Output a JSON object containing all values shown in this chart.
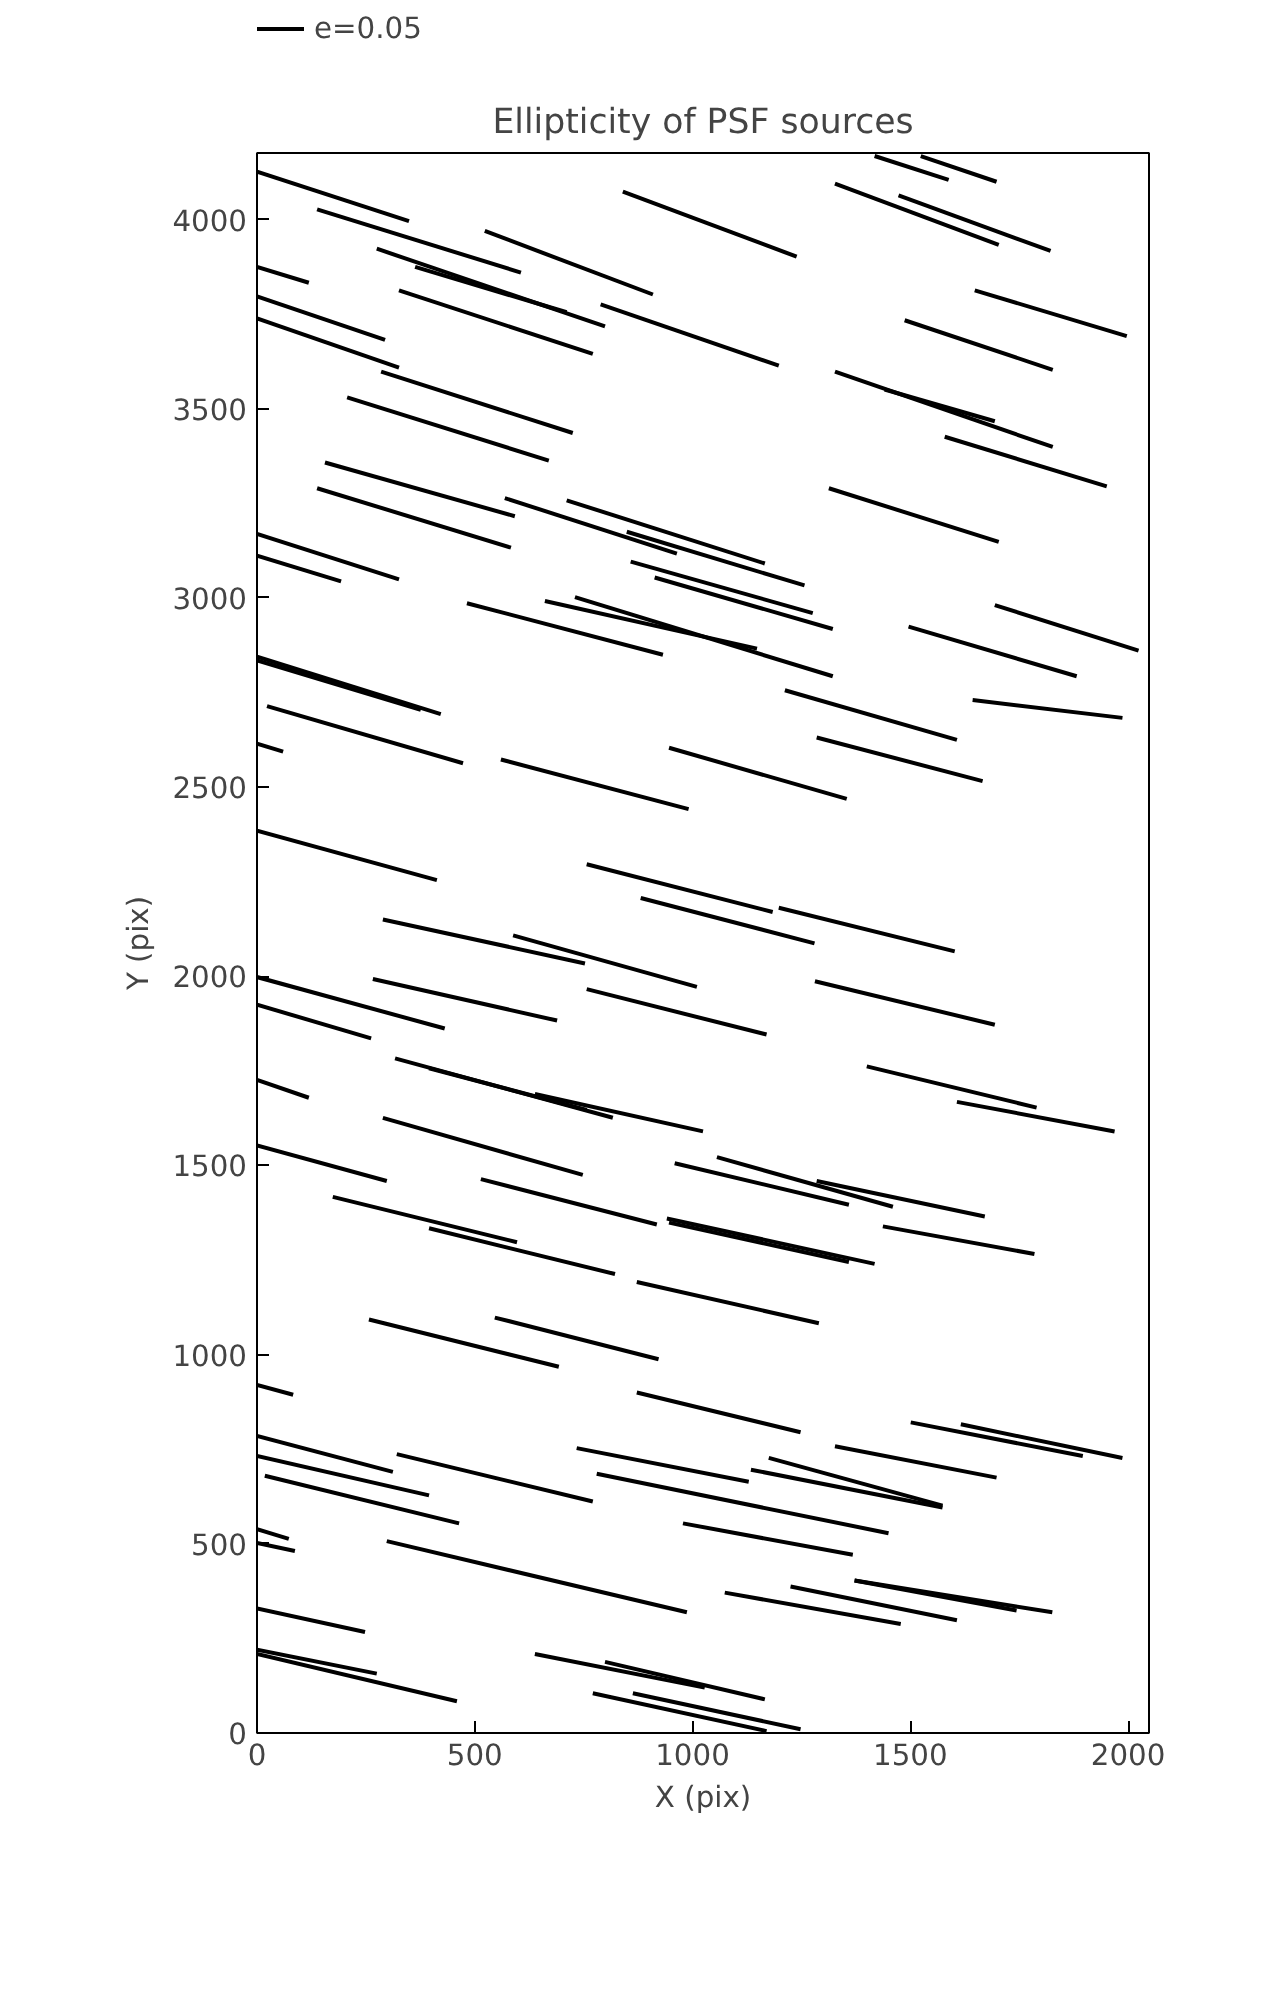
{
  "chart_data": {
    "type": "line",
    "title": "Ellipticity of PSF sources",
    "xlabel": "X (pix)",
    "ylabel": "Y (pix)",
    "xlim": [
      0,
      2048
    ],
    "ylim": [
      0,
      4176
    ],
    "xticks": [
      0,
      500,
      1000,
      1500,
      2000
    ],
    "yticks": [
      0,
      500,
      1000,
      1500,
      2000,
      2500,
      3000,
      3500,
      4000
    ],
    "grid": false,
    "legend": "top left",
    "color": "#000000",
    "series": [
      {
        "name": "e=0.05",
        "x": [
          0,
          349
        ],
        "values": [
          4127,
          3996
        ]
      },
      {
        "x": [
          138,
          606
        ],
        "values": [
          4027,
          3860
        ]
      },
      {
        "x": [
          523,
          909
        ],
        "values": [
          3970,
          3802
        ]
      },
      {
        "x": [
          275,
          799
        ],
        "values": [
          3923,
          3718
        ]
      },
      {
        "x": [
          363,
          711
        ],
        "values": [
          3875,
          3755
        ]
      },
      {
        "x": [
          0,
          119
        ],
        "values": [
          3875,
          3833
        ]
      },
      {
        "x": [
          0,
          294
        ],
        "values": [
          3797,
          3682
        ]
      },
      {
        "x": [
          0,
          326
        ],
        "values": [
          3739,
          3609
        ]
      },
      {
        "x": [
          326,
          771
        ],
        "values": [
          3813,
          3645
        ]
      },
      {
        "x": [
          789,
          1198
        ],
        "values": [
          3776,
          3614
        ]
      },
      {
        "x": [
          840,
          1239
        ],
        "values": [
          4074,
          3902
        ]
      },
      {
        "x": [
          285,
          725
        ],
        "values": [
          3598,
          3436
        ]
      },
      {
        "x": [
          207,
          670
        ],
        "values": [
          3530,
          3363
        ]
      },
      {
        "x": [
          156,
          592
        ],
        "values": [
          3358,
          3216
        ]
      },
      {
        "x": [
          138,
          583
        ],
        "values": [
          3290,
          3133
        ]
      },
      {
        "x": [
          0,
          326
        ],
        "values": [
          3169,
          3049
        ]
      },
      {
        "x": [
          0,
          193
        ],
        "values": [
          3112,
          3044
        ]
      },
      {
        "x": [
          569,
          964
        ],
        "values": [
          3264,
          3117
        ]
      },
      {
        "x": [
          711,
          1166
        ],
        "values": [
          3258,
          3091
        ]
      },
      {
        "x": [
          849,
          1257
        ],
        "values": [
          3175,
          3033
        ]
      },
      {
        "x": [
          858,
          1276
        ],
        "values": [
          3096,
          2960
        ]
      },
      {
        "x": [
          913,
          1322
        ],
        "values": [
          3054,
          2918
        ]
      },
      {
        "x": [
          661,
          1148
        ],
        "values": [
          2992,
          2866
        ]
      },
      {
        "x": [
          730,
          1322
        ],
        "values": [
          3002,
          2793
        ]
      },
      {
        "x": [
          482,
          932
        ],
        "values": [
          2986,
          2850
        ]
      },
      {
        "x": [
          0,
          422
        ],
        "values": [
          2845,
          2693
        ]
      },
      {
        "x": [
          0,
          376
        ],
        "values": [
          2835,
          2704
        ]
      },
      {
        "x": [
          1418,
          1588
        ],
        "values": [
          4168,
          4105
        ]
      },
      {
        "x": [
          1524,
          1698
        ],
        "values": [
          4168,
          4100
        ]
      },
      {
        "x": [
          1327,
          1703
        ],
        "values": [
          4095,
          3933
        ]
      },
      {
        "x": [
          1473,
          1822
        ],
        "values": [
          4064,
          3917
        ]
      },
      {
        "x": [
          1648,
          1997
        ],
        "values": [
          3813,
          3692
        ]
      },
      {
        "x": [
          1487,
          1827
        ],
        "values": [
          3734,
          3603
        ]
      },
      {
        "x": [
          1327,
          1827
        ],
        "values": [
          3598,
          3399
        ]
      },
      {
        "x": [
          1441,
          1694
        ],
        "values": [
          3551,
          3467
        ]
      },
      {
        "x": [
          1579,
          1951
        ],
        "values": [
          3426,
          3295
        ]
      },
      {
        "x": [
          1313,
          1703
        ],
        "values": [
          3290,
          3148
        ]
      },
      {
        "x": [
          1694,
          2024
        ],
        "values": [
          2981,
          2861
        ]
      },
      {
        "x": [
          1496,
          1882
        ],
        "values": [
          2924,
          2793
        ]
      },
      {
        "x": [
          1212,
          1607
        ],
        "values": [
          2756,
          2625
        ]
      },
      {
        "x": [
          23,
          473
        ],
        "values": [
          2714,
          2563
        ]
      },
      {
        "x": [
          0,
          60
        ],
        "values": [
          2615,
          2594
        ]
      },
      {
        "x": [
          560,
          991
        ],
        "values": [
          2573,
          2442
        ]
      },
      {
        "x": [
          946,
          1354
        ],
        "values": [
          2604,
          2469
        ]
      },
      {
        "x": [
          1643,
          1987
        ],
        "values": [
          2730,
          2683
        ]
      },
      {
        "x": [
          1285,
          1666
        ],
        "values": [
          2631,
          2516
        ]
      },
      {
        "x": [
          0,
          413
        ],
        "values": [
          2385,
          2254
        ]
      },
      {
        "x": [
          757,
          1184
        ],
        "values": [
          2296,
          2170
        ]
      },
      {
        "x": [
          881,
          1280
        ],
        "values": [
          2207,
          2087
        ]
      },
      {
        "x": [
          1198,
          1602
        ],
        "values": [
          2181,
          2066
        ]
      },
      {
        "x": [
          289,
          753
        ],
        "values": [
          2150,
          2034
        ]
      },
      {
        "x": [
          588,
          1010
        ],
        "values": [
          2108,
          1972
        ]
      },
      {
        "x": [
          0,
          431
        ],
        "values": [
          1998,
          1862
        ]
      },
      {
        "x": [
          266,
          689
        ],
        "values": [
          1993,
          1883
        ]
      },
      {
        "x": [
          757,
          1170
        ],
        "values": [
          1966,
          1846
        ]
      },
      {
        "x": [
          1281,
          1694
        ],
        "values": [
          1987,
          1872
        ]
      },
      {
        "x": [
          0,
          262
        ],
        "values": [
          1925,
          1836
        ]
      },
      {
        "x": [
          317,
          817
        ],
        "values": [
          1783,
          1626
        ]
      },
      {
        "x": [
          395,
          757
        ],
        "values": [
          1757,
          1647
        ]
      },
      {
        "x": [
          638,
          1024
        ],
        "values": [
          1689,
          1590
        ]
      },
      {
        "x": [
          0,
          119
        ],
        "values": [
          1726,
          1679
        ]
      },
      {
        "x": [
          1400,
          1790
        ],
        "values": [
          1762,
          1653
        ]
      },
      {
        "x": [
          1607,
          1969
        ],
        "values": [
          1668,
          1590
        ]
      },
      {
        "x": [
          289,
          748
        ],
        "values": [
          1626,
          1475
        ]
      },
      {
        "x": [
          0,
          298
        ],
        "values": [
          1553,
          1459
        ]
      },
      {
        "x": [
          514,
          918
        ],
        "values": [
          1464,
          1344
        ]
      },
      {
        "x": [
          174,
          597
        ],
        "values": [
          1417,
          1297
        ]
      },
      {
        "x": [
          959,
          1359
        ],
        "values": [
          1506,
          1396
        ]
      },
      {
        "x": [
          1056,
          1460
        ],
        "values": [
          1522,
          1391
        ]
      },
      {
        "x": [
          1285,
          1671
        ],
        "values": [
          1459,
          1365
        ]
      },
      {
        "x": [
          395,
          822
        ],
        "values": [
          1334,
          1213
        ]
      },
      {
        "x": [
          941,
          1418
        ],
        "values": [
          1360,
          1240
        ]
      },
      {
        "x": [
          946,
          1359
        ],
        "values": [
          1349,
          1245
        ]
      },
      {
        "x": [
          1437,
          1785
        ],
        "values": [
          1339,
          1266
        ]
      },
      {
        "x": [
          872,
          1290
        ],
        "values": [
          1192,
          1083
        ]
      },
      {
        "x": [
          257,
          693
        ],
        "values": [
          1093,
          968
        ]
      },
      {
        "x": [
          546,
          922
        ],
        "values": [
          1098,
          988
        ]
      },
      {
        "x": [
          0,
          83
        ],
        "values": [
          920,
          894
        ]
      },
      {
        "x": [
          872,
          1248
        ],
        "values": [
          900,
          795
        ]
      },
      {
        "x": [
          1501,
          1896
        ],
        "values": [
          821,
          732
        ]
      },
      {
        "x": [
          1616,
          1987
        ],
        "values": [
          816,
          727
        ]
      },
      {
        "x": [
          1327,
          1698
        ],
        "values": [
          758,
          675
        ]
      },
      {
        "x": [
          0,
          312
        ],
        "values": [
          785,
          690
        ]
      },
      {
        "x": [
          0,
          395
        ],
        "values": [
          732,
          628
        ]
      },
      {
        "x": [
          18,
          464
        ],
        "values": [
          680,
          554
        ]
      },
      {
        "x": [
          321,
          771
        ],
        "values": [
          737,
          612
        ]
      },
      {
        "x": [
          734,
          1129
        ],
        "values": [
          753,
          664
        ]
      },
      {
        "x": [
          780,
          1450
        ],
        "values": [
          685,
          528
        ]
      },
      {
        "x": [
          1134,
          1574
        ],
        "values": [
          696,
          596
        ]
      },
      {
        "x": [
          1175,
          1574
        ],
        "values": [
          727,
          601
        ]
      },
      {
        "x": [
          978,
          1368
        ],
        "values": [
          554,
          471
        ]
      },
      {
        "x": [
          0,
          73
        ],
        "values": [
          539,
          513
        ]
      },
      {
        "x": [
          0,
          87
        ],
        "values": [
          502,
          481
        ]
      },
      {
        "x": [
          298,
          987
        ],
        "values": [
          507,
          319
        ]
      },
      {
        "x": [
          0,
          248
        ],
        "values": [
          329,
          267
        ]
      },
      {
        "x": [
          1074,
          1478
        ],
        "values": [
          371,
          288
        ]
      },
      {
        "x": [
          1225,
          1607
        ],
        "values": [
          387,
          298
        ]
      },
      {
        "x": [
          1372,
          1744
        ],
        "values": [
          403,
          324
        ]
      },
      {
        "x": [
          1372,
          1826
        ],
        "values": [
          403,
          319
        ]
      },
      {
        "x": [
          0,
          275
        ],
        "values": [
          220,
          157
        ]
      },
      {
        "x": [
          0,
          459
        ],
        "values": [
          209,
          84
        ]
      },
      {
        "x": [
          638,
          1028
        ],
        "values": [
          209,
          120
        ]
      },
      {
        "x": [
          771,
          1170
        ],
        "values": [
          105,
          5
        ]
      },
      {
        "x": [
          863,
          1248
        ],
        "values": [
          105,
          10
        ]
      },
      {
        "x": [
          799,
          1166
        ],
        "values": [
          188,
          89
        ]
      }
    ]
  }
}
